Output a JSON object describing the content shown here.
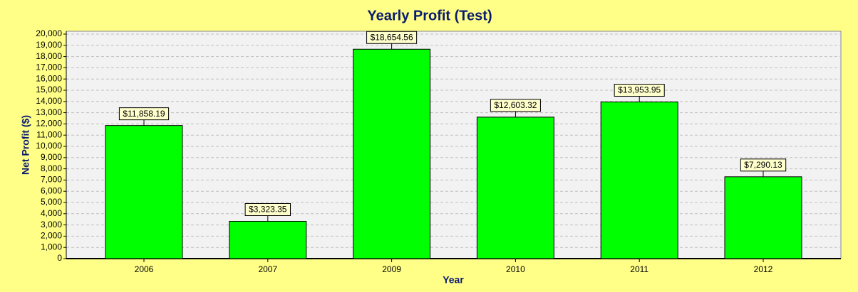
{
  "chart_data": {
    "type": "bar",
    "title": "Yearly Profit (Test)",
    "x_label": "Year",
    "y_label": "Net Profit ($)",
    "categories": [
      "2006",
      "2007",
      "2009",
      "2010",
      "2011",
      "2012"
    ],
    "values": [
      11858.19,
      3323.35,
      18654.56,
      12603.32,
      13953.95,
      7290.13
    ],
    "value_labels": [
      "$11,858.19",
      "$3,323.35",
      "$18,654.56",
      "$12,603.32",
      "$13,953.95",
      "$7,290.13"
    ],
    "color": "#00ff00",
    "ylim": [
      0,
      20000
    ],
    "yticks": [
      0,
      {
        "value": 1000,
        "label": "1,000"
      },
      {
        "value": 2000,
        "label": "2,000"
      },
      {
        "value": 3000,
        "label": "3,000"
      },
      {
        "value": 4000,
        "label": "4,000"
      },
      {
        "value": 5000,
        "label": "5,000"
      },
      {
        "value": 6000,
        "label": "6,000"
      },
      {
        "value": 7000,
        "label": "7,000"
      },
      {
        "value": 8000,
        "label": "8,000"
      },
      {
        "value": 9000,
        "label": "9,000"
      },
      {
        "value": 10000,
        "label": "10,000"
      },
      {
        "value": 11000,
        "label": "11,000"
      },
      {
        "value": 12000,
        "label": "12,000"
      },
      {
        "value": 13000,
        "label": "13,000"
      },
      {
        "value": 14000,
        "label": "14,000"
      },
      {
        "value": 15000,
        "label": "15,000"
      },
      {
        "value": 16000,
        "label": "16,000"
      },
      {
        "value": 17000,
        "label": "17,000"
      },
      {
        "value": 18000,
        "label": "18,000"
      },
      {
        "value": 19000,
        "label": "19,000"
      },
      {
        "value": 20000,
        "label": "20,000"
      }
    ],
    "grid": true
  }
}
